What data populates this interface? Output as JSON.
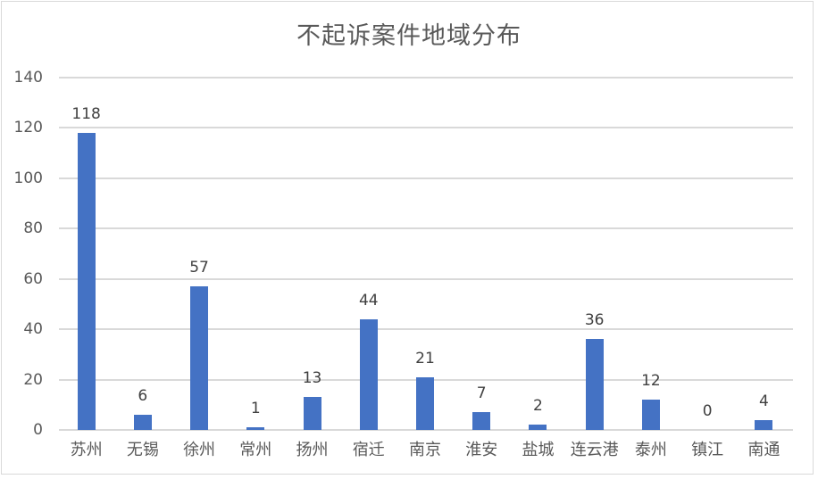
{
  "chart_data": {
    "type": "bar",
    "title": "不起诉案件地域分布",
    "xlabel": "",
    "ylabel": "",
    "categories": [
      "苏州",
      "无锡",
      "徐州",
      "常州",
      "扬州",
      "宿迁",
      "南京",
      "淮安",
      "盐城",
      "连云港",
      "泰州",
      "镇江",
      "南通"
    ],
    "values": [
      118,
      6,
      57,
      1,
      13,
      44,
      21,
      7,
      2,
      36,
      12,
      0,
      4
    ],
    "ylim": [
      0,
      140
    ],
    "yticks": [
      0,
      20,
      40,
      60,
      80,
      100,
      120,
      140
    ],
    "grid": true,
    "legend": "none",
    "data_labels": true,
    "bar_color": "#4472c4"
  },
  "colors": {
    "bar": "#4472c4",
    "grid": "#d9d9d9",
    "text": "#595959",
    "label": "#404040"
  }
}
